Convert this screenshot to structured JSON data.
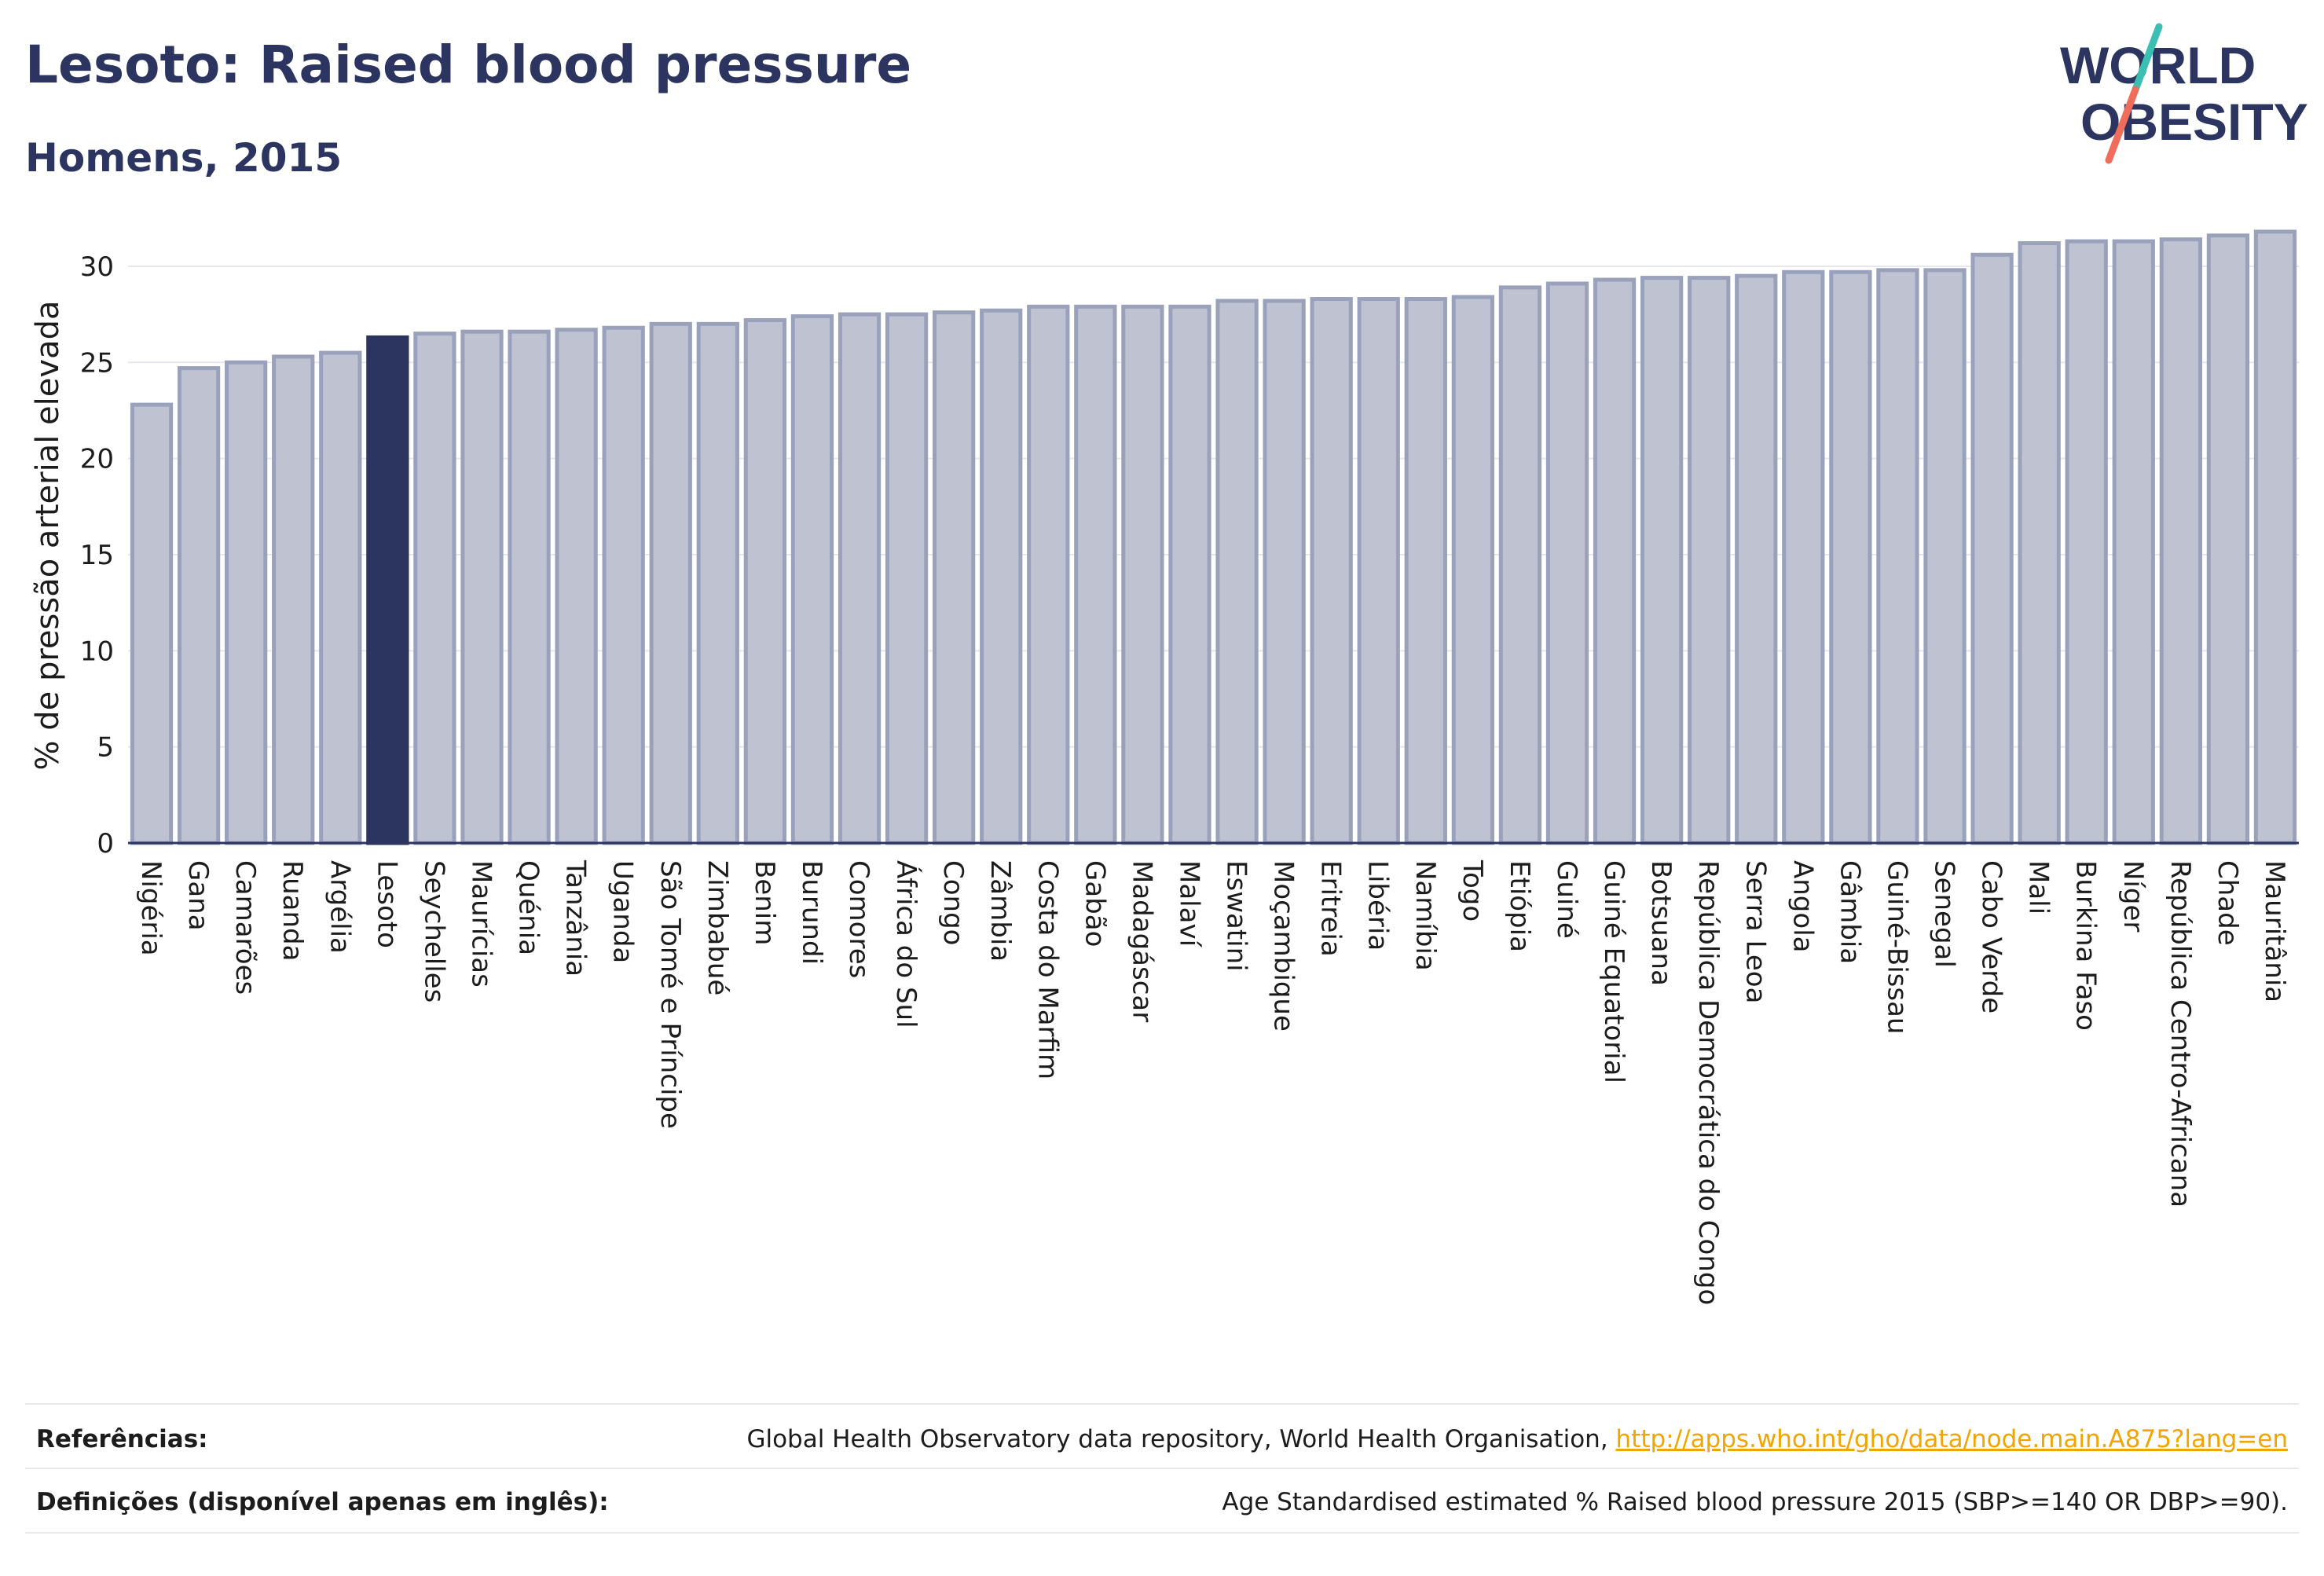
{
  "header": {
    "title": "Lesoto: Raised blood pressure",
    "subtitle": "Homens, 2015"
  },
  "logo": {
    "line1": "WORLD",
    "line2": "OBESITY",
    "icon": "world-obesity-logo"
  },
  "colors": {
    "highlight": "#2b3560",
    "bar_fill": "#bfc3d1",
    "bar_stroke": "#9aa1ba",
    "accent_teal": "#3bbfb2",
    "accent_coral": "#f06c5b"
  },
  "chart_data": {
    "type": "bar",
    "title": "Lesoto: Raised blood pressure",
    "subtitle": "Homens, 2015",
    "ylabel": "% de pressão arterial elevada",
    "xlabel": "",
    "ylim": [
      0,
      32
    ],
    "yticks": [
      0,
      5,
      10,
      15,
      20,
      25,
      30
    ],
    "grid": true,
    "highlight": "Lesoto",
    "categories": [
      "Nigéria",
      "Gana",
      "Camarões",
      "Ruanda",
      "Argélia",
      "Lesoto",
      "Seychelles",
      "Maurícias",
      "Quénia",
      "Tanzânia",
      "Uganda",
      "São Tomé e Príncipe",
      "Zimbabué",
      "Benim",
      "Burundi",
      "Comores",
      "África do Sul",
      "Congo",
      "Zâmbia",
      "Costa do Marfim",
      "Gabão",
      "Madagáscar",
      "Malaví",
      "Eswatini",
      "Moçambique",
      "Eritreia",
      "Libéria",
      "Namíbia",
      "Togo",
      "Etiópia",
      "Guiné",
      "Guiné Equatorial",
      "Botsuana",
      "República Democrática do Congo",
      "Serra Leoa",
      "Angola",
      "Gâmbia",
      "Guiné-Bissau",
      "Senegal",
      "Cabo Verde",
      "Mali",
      "Burkina Faso",
      "Níger",
      "República Centro-Africana",
      "Chade",
      "Mauritânia"
    ],
    "values": [
      22.8,
      24.7,
      25.0,
      25.3,
      25.5,
      26.3,
      26.5,
      26.6,
      26.6,
      26.7,
      26.8,
      27.0,
      27.0,
      27.2,
      27.4,
      27.5,
      27.5,
      27.6,
      27.7,
      27.9,
      27.9,
      27.9,
      27.9,
      28.2,
      28.2,
      28.3,
      28.3,
      28.3,
      28.4,
      28.9,
      29.1,
      29.3,
      29.4,
      29.4,
      29.5,
      29.7,
      29.7,
      29.8,
      29.8,
      30.6,
      31.2,
      31.3,
      31.3,
      31.4,
      31.6,
      31.8
    ]
  },
  "footer": {
    "references_label": "Referências:",
    "references_text": "Global Health Observatory data repository, World Health Organisation, ",
    "references_link": "http://apps.who.int/gho/data/node.main.A875?lang=en",
    "definitions_label": "Definições (disponível apenas em inglês):",
    "definitions_text": "Age Standardised estimated % Raised blood pressure 2015 (SBP>=140 OR DBP>=90)."
  }
}
